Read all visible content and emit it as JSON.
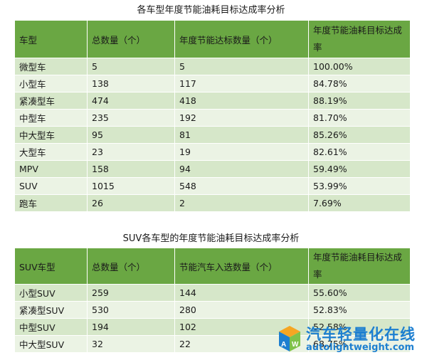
{
  "table1": {
    "title": "各车型年度节能油耗目标达成率分析",
    "headers": [
      "车型",
      "总数量（个）",
      "年度节能达标数量（个）",
      "年度节能油耗目标达成率"
    ],
    "rows": [
      [
        "微型车",
        "5",
        "5",
        "100.00%"
      ],
      [
        "小型车",
        "138",
        "117",
        "84.78%"
      ],
      [
        "紧凑型车",
        "474",
        "418",
        "88.19%"
      ],
      [
        "中型车",
        "235",
        "192",
        "81.70%"
      ],
      [
        "中大型车",
        "95",
        "81",
        "85.26%"
      ],
      [
        "大型车",
        "23",
        "19",
        "82.61%"
      ],
      [
        "MPV",
        "158",
        "94",
        "59.49%"
      ],
      [
        "SUV",
        "1015",
        "548",
        "53.99%"
      ],
      [
        "跑车",
        "26",
        "2",
        "7.69%"
      ]
    ]
  },
  "table2": {
    "title": "SUV各车型的年度节能油耗目标达成率分析",
    "headers": [
      "SUV车型",
      "总数量（个）",
      "节能汽车入选数量（个）",
      "年度节能油耗目标达成率"
    ],
    "rows": [
      [
        "小型SUV",
        "259",
        "144",
        "55.60%"
      ],
      [
        "紧凑型SUV",
        "530",
        "280",
        "52.83%"
      ],
      [
        "中型SUV",
        "194",
        "102",
        "52.58%"
      ],
      [
        "中大型SUV",
        "32",
        "22",
        "68.75%"
      ]
    ]
  },
  "watermark": {
    "text_cn": "汽车轻量化在线",
    "text_en": "autolightweight.com",
    "color": "#1d7fd0",
    "icon": "cube-logo-icon"
  },
  "colors": {
    "header_bg": "#6aa743",
    "row_odd": "#d6e7c9",
    "row_even": "#ebf3e4"
  }
}
